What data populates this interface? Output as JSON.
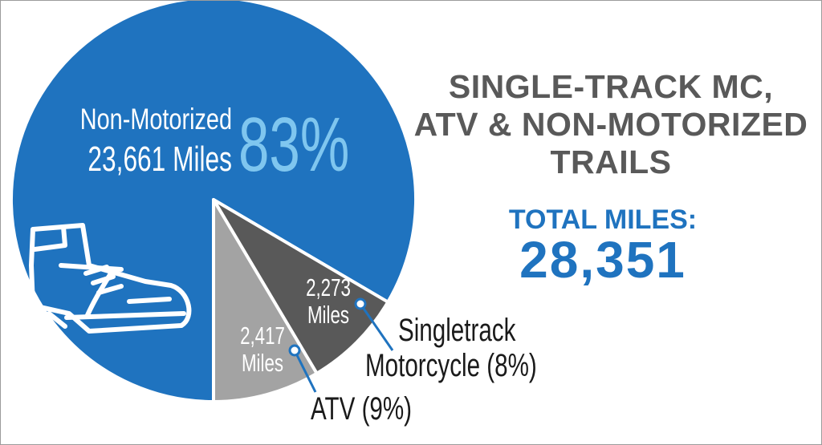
{
  "title_lines": [
    "SINGLE-TRACK MC,",
    "ATV & NON-MOTORIZED",
    "TRAILS"
  ],
  "total_label": "TOTAL MILES:",
  "total_value": "28,351",
  "colors": {
    "non_motorized": "#1f73bf",
    "singletrack": "#595959",
    "atv": "#a3a3a3",
    "percent_accent": "#7fc6ef",
    "heading_gray": "#595959",
    "total_blue": "#1f73bf"
  },
  "icons": [
    "hiking-boot-icon"
  ],
  "chart_data": {
    "type": "pie",
    "slices": [
      {
        "name": "Non-Motorized",
        "value": 23661,
        "miles_label": "23,661 Miles",
        "percent_label": "83%"
      },
      {
        "name": "Singletrack Motorcycle",
        "value": 2273,
        "miles_label_lines": [
          "2,273",
          "Miles"
        ],
        "legend_label_lines": [
          "Singletrack",
          "Motorcycle (8%)"
        ]
      },
      {
        "name": "ATV",
        "value": 2417,
        "miles_label_lines": [
          "2,417",
          "Miles"
        ],
        "legend_label": "ATV (9%)"
      }
    ]
  }
}
